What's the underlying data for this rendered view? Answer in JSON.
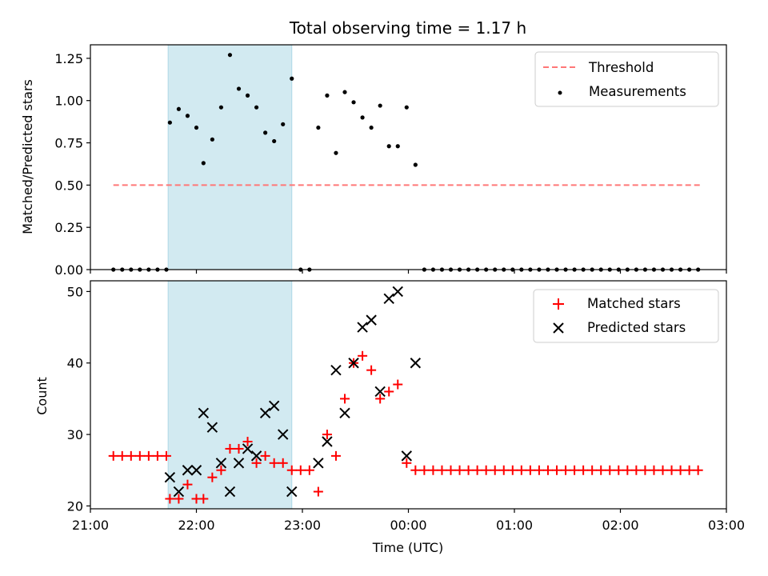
{
  "chart_data": [
    {
      "type": "scatter",
      "title": "Total observing time = 1.17 h",
      "xlabel": "",
      "ylabel": "Matched/Predicted stars",
      "xlim": [
        "21:00",
        "03:00"
      ],
      "ylim": [
        0,
        1.33
      ],
      "yticks": [
        0,
        0.25,
        0.5,
        0.75,
        1.0,
        1.25
      ],
      "ytick_labels": [
        "0.00",
        "0.25",
        "0.50",
        "0.75",
        "1.00",
        "1.25"
      ],
      "highlight_span": {
        "start": "21:44",
        "end": "22:54",
        "color": "#add8e6"
      },
      "threshold": {
        "name": "Threshold",
        "value": 0.5,
        "from": "21:13",
        "to": "02:45",
        "color": "#ff7777",
        "style": "dashed"
      },
      "legend": {
        "position": "upper right",
        "entries": [
          "Threshold",
          "Measurements"
        ]
      },
      "series": [
        {
          "name": "Measurements",
          "marker": "dot",
          "color": "#000000",
          "points": [
            [
              "21:13",
              0
            ],
            [
              "21:18",
              0
            ],
            [
              "21:23",
              0
            ],
            [
              "21:28",
              0
            ],
            [
              "21:33",
              0
            ],
            [
              "21:38",
              0
            ],
            [
              "21:43",
              0
            ],
            [
              "21:45",
              0.87
            ],
            [
              "21:50",
              0.95
            ],
            [
              "21:55",
              0.91
            ],
            [
              "22:00",
              0.84
            ],
            [
              "22:04",
              0.63
            ],
            [
              "22:09",
              0.77
            ],
            [
              "22:14",
              0.96
            ],
            [
              "22:19",
              1.27
            ],
            [
              "22:24",
              1.07
            ],
            [
              "22:29",
              1.03
            ],
            [
              "22:34",
              0.96
            ],
            [
              "22:39",
              0.81
            ],
            [
              "22:44",
              0.76
            ],
            [
              "22:49",
              0.86
            ],
            [
              "22:54",
              1.13
            ],
            [
              "22:59",
              0
            ],
            [
              "23:04",
              0
            ],
            [
              "23:09",
              0.84
            ],
            [
              "23:14",
              1.03
            ],
            [
              "23:19",
              0.69
            ],
            [
              "23:24",
              1.05
            ],
            [
              "23:29",
              0.99
            ],
            [
              "23:34",
              0.9
            ],
            [
              "23:39",
              0.84
            ],
            [
              "23:44",
              0.97
            ],
            [
              "23:49",
              0.73
            ],
            [
              "23:54",
              0.73
            ],
            [
              "23:59",
              0.96
            ],
            [
              "00:04",
              0.62
            ],
            [
              "00:09",
              0
            ],
            [
              "00:14",
              0
            ],
            [
              "00:19",
              0
            ],
            [
              "00:24",
              0
            ],
            [
              "00:29",
              0
            ],
            [
              "00:34",
              0
            ],
            [
              "00:39",
              0
            ],
            [
              "00:44",
              0
            ],
            [
              "00:49",
              0
            ],
            [
              "00:54",
              0
            ],
            [
              "00:59",
              0
            ],
            [
              "01:04",
              0
            ],
            [
              "01:09",
              0
            ],
            [
              "01:14",
              0
            ],
            [
              "01:19",
              0
            ],
            [
              "01:24",
              0
            ],
            [
              "01:29",
              0
            ],
            [
              "01:34",
              0
            ],
            [
              "01:39",
              0
            ],
            [
              "01:44",
              0
            ],
            [
              "01:49",
              0
            ],
            [
              "01:54",
              0
            ],
            [
              "01:59",
              0
            ],
            [
              "02:04",
              0
            ],
            [
              "02:09",
              0
            ],
            [
              "02:14",
              0
            ],
            [
              "02:19",
              0
            ],
            [
              "02:24",
              0
            ],
            [
              "02:29",
              0
            ],
            [
              "02:34",
              0
            ],
            [
              "02:39",
              0
            ],
            [
              "02:44",
              0
            ]
          ]
        }
      ]
    },
    {
      "type": "scatter",
      "title": "",
      "xlabel": "Time (UTC)",
      "ylabel": "Count",
      "xlim": [
        "21:00",
        "03:00"
      ],
      "xticks": [
        "21:00",
        "22:00",
        "23:00",
        "00:00",
        "01:00",
        "02:00",
        "03:00"
      ],
      "ylim": [
        19.6,
        51.5
      ],
      "yticks": [
        20,
        30,
        40,
        50
      ],
      "highlight_span": {
        "start": "21:44",
        "end": "22:54",
        "color": "#add8e6"
      },
      "legend": {
        "position": "upper right",
        "entries": [
          "Matched stars",
          "Predicted stars"
        ]
      },
      "series": [
        {
          "name": "Matched stars",
          "marker": "plus",
          "color": "#ff0000",
          "points": [
            [
              "21:13",
              27
            ],
            [
              "21:18",
              27
            ],
            [
              "21:23",
              27
            ],
            [
              "21:28",
              27
            ],
            [
              "21:33",
              27
            ],
            [
              "21:38",
              27
            ],
            [
              "21:43",
              27
            ],
            [
              "21:45",
              21
            ],
            [
              "21:50",
              21
            ],
            [
              "21:55",
              23
            ],
            [
              "22:00",
              21
            ],
            [
              "22:04",
              21
            ],
            [
              "22:09",
              24
            ],
            [
              "22:14",
              25
            ],
            [
              "22:19",
              28
            ],
            [
              "22:24",
              28
            ],
            [
              "22:29",
              29
            ],
            [
              "22:34",
              26
            ],
            [
              "22:39",
              27
            ],
            [
              "22:44",
              26
            ],
            [
              "22:49",
              26
            ],
            [
              "22:54",
              25
            ],
            [
              "22:59",
              25
            ],
            [
              "23:04",
              25
            ],
            [
              "23:09",
              22
            ],
            [
              "23:14",
              30
            ],
            [
              "23:19",
              27
            ],
            [
              "23:24",
              35
            ],
            [
              "23:29",
              40
            ],
            [
              "23:34",
              41
            ],
            [
              "23:39",
              39
            ],
            [
              "23:44",
              35
            ],
            [
              "23:49",
              36
            ],
            [
              "23:54",
              37
            ],
            [
              "23:59",
              26
            ],
            [
              "00:04",
              25
            ],
            [
              "00:09",
              25
            ],
            [
              "00:14",
              25
            ],
            [
              "00:19",
              25
            ],
            [
              "00:24",
              25
            ],
            [
              "00:29",
              25
            ],
            [
              "00:34",
              25
            ],
            [
              "00:39",
              25
            ],
            [
              "00:44",
              25
            ],
            [
              "00:49",
              25
            ],
            [
              "00:54",
              25
            ],
            [
              "00:59",
              25
            ],
            [
              "01:04",
              25
            ],
            [
              "01:09",
              25
            ],
            [
              "01:14",
              25
            ],
            [
              "01:19",
              25
            ],
            [
              "01:24",
              25
            ],
            [
              "01:29",
              25
            ],
            [
              "01:34",
              25
            ],
            [
              "01:39",
              25
            ],
            [
              "01:44",
              25
            ],
            [
              "01:49",
              25
            ],
            [
              "01:54",
              25
            ],
            [
              "01:59",
              25
            ],
            [
              "02:04",
              25
            ],
            [
              "02:09",
              25
            ],
            [
              "02:14",
              25
            ],
            [
              "02:19",
              25
            ],
            [
              "02:24",
              25
            ],
            [
              "02:29",
              25
            ],
            [
              "02:34",
              25
            ],
            [
              "02:39",
              25
            ],
            [
              "02:44",
              25
            ]
          ]
        },
        {
          "name": "Predicted stars",
          "marker": "x",
          "color": "#000000",
          "points": [
            [
              "21:45",
              24
            ],
            [
              "21:50",
              22
            ],
            [
              "21:55",
              25
            ],
            [
              "22:00",
              25
            ],
            [
              "22:04",
              33
            ],
            [
              "22:09",
              31
            ],
            [
              "22:14",
              26
            ],
            [
              "22:19",
              22
            ],
            [
              "22:24",
              26
            ],
            [
              "22:29",
              28
            ],
            [
              "22:34",
              27
            ],
            [
              "22:39",
              33
            ],
            [
              "22:44",
              34
            ],
            [
              "22:49",
              30
            ],
            [
              "22:54",
              22
            ],
            [
              "23:09",
              26
            ],
            [
              "23:14",
              29
            ],
            [
              "23:19",
              39
            ],
            [
              "23:24",
              33
            ],
            [
              "23:29",
              40
            ],
            [
              "23:34",
              45
            ],
            [
              "23:39",
              46
            ],
            [
              "23:44",
              36
            ],
            [
              "23:49",
              49
            ],
            [
              "23:54",
              50
            ],
            [
              "23:59",
              27
            ],
            [
              "00:04",
              40
            ]
          ]
        }
      ]
    }
  ]
}
